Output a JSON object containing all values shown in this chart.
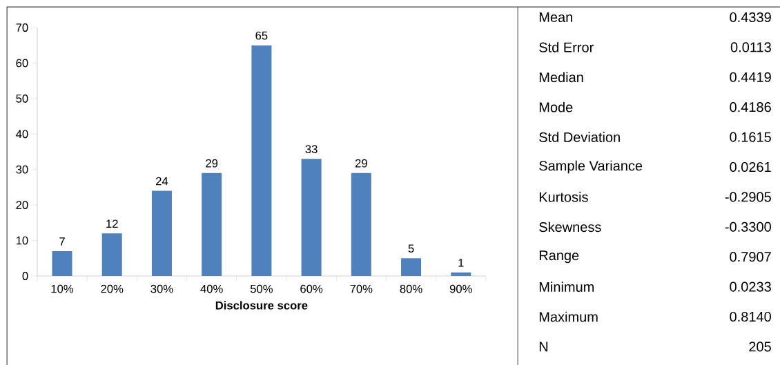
{
  "chart_data": [
    {
      "type": "bar",
      "xlabel": "Disclosure score",
      "categories": [
        "10%",
        "20%",
        "30%",
        "40%",
        "50%",
        "60%",
        "70%",
        "80%",
        "90%"
      ],
      "values": [
        7,
        12,
        24,
        29,
        65,
        33,
        29,
        5,
        1
      ],
      "color": "#4f81bd",
      "ylim": [
        0,
        70
      ],
      "yticks": [
        0,
        10,
        20,
        30,
        40,
        50,
        60,
        70
      ],
      "data_labels": true,
      "grid": false
    },
    {
      "type": "other",
      "annotations": [
        "Mean",
        "0.4339",
        "Std Error",
        "0.0113",
        "Median",
        "0.4419",
        "Mode",
        "0.4186",
        "Std Deviation",
        "0.1615",
        "Sample Variance",
        "0.0261",
        "Kurtosis",
        "-0.2905",
        "Skewness",
        "-0.3300",
        "Range",
        "0.7907",
        "Minimum",
        "0.0233",
        "Maximum",
        "0.8140",
        "N",
        "205"
      ]
    }
  ]
}
